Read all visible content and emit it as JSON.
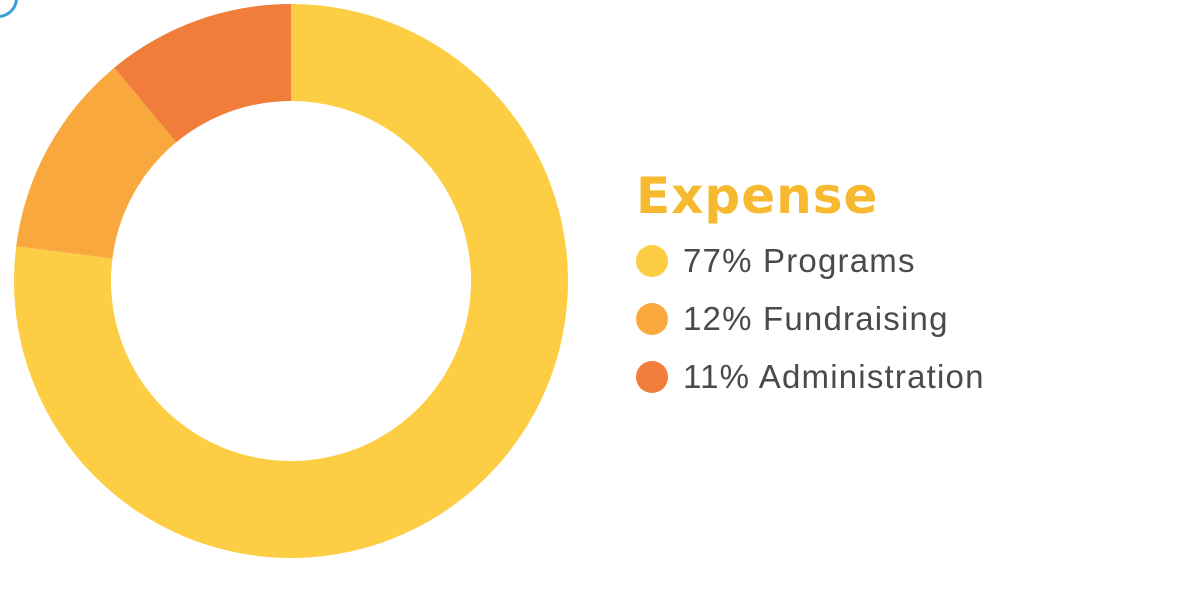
{
  "chart_data": {
    "type": "pie",
    "style": "donut",
    "title": "Expense",
    "categories": [
      "Programs",
      "Fundraising",
      "Administration"
    ],
    "values": [
      77,
      12,
      11
    ],
    "unit": "%",
    "labels": [
      "77% Programs",
      "12% Fundraising",
      "11% Administration"
    ],
    "colors": [
      "#fdce43",
      "#f9a83e",
      "#f07d3a"
    ],
    "title_color": "#f6b92f",
    "legend_position": "right"
  }
}
